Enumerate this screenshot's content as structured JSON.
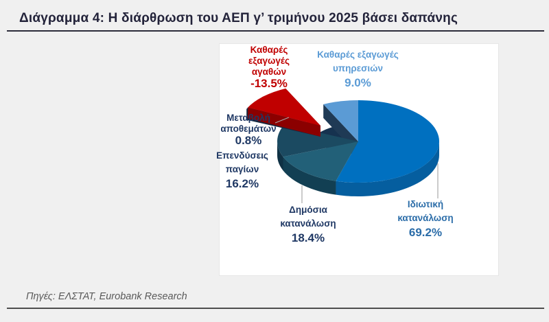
{
  "page": {
    "background_color": "#f0f0f0",
    "panel_color": "#ffffff"
  },
  "header": {
    "title": "Διάγραμμα 4: Η διάρθρωση του ΑΕΠ γ’ τριμήνου 2025 βάσει δαπάνης"
  },
  "footer": {
    "source": "Πηγές: ΕΛΣΤΑΤ, Eurobank Research"
  },
  "chart_data": {
    "type": "pie",
    "style": "3d exploded pie",
    "title": "Η διάρθρωση του ΑΕΠ γ’ τριμήνου 2025 βάσει δαπάνης",
    "unit": "%",
    "legend_position": "callout labels around pie",
    "slices": [
      {
        "id": "private-consumption",
        "label": "Ιδιωτική κατανάλωση",
        "value": 69.2,
        "display": "69.2%",
        "color": "#0070c0",
        "side_color": "#055e9f",
        "label_color": "#2a6ca8"
      },
      {
        "id": "public-consumption",
        "label": "Δημόσια κατανάλωση",
        "value": 18.4,
        "display": "18.4%",
        "color": "#226078",
        "side_color": "#123f53",
        "label_color": "#1f3864"
      },
      {
        "id": "fixed-investment",
        "label": "Επενδύσεις παγίων",
        "value": 16.2,
        "display": "16.2%",
        "color": "#1b4a61",
        "side_color": "#0f3144",
        "label_color": "#1f3864",
        "wall_end": true
      },
      {
        "id": "inventories-change",
        "label": "Μεταβολή αποθεμάτων",
        "value": 0.8,
        "display": "0.8%",
        "color": "#1c3557",
        "side_color": "#14283f",
        "label_color": "#1f3864",
        "exploded": true
      },
      {
        "id": "net-goods-exports",
        "label": "Καθαρές εξαγωγές αγαθών",
        "value": -13.5,
        "display": "-13.5%",
        "color": "#c00000",
        "side_color": "#8b0000",
        "label_color": "#c00000",
        "exploded": true
      },
      {
        "id": "net-services-exports",
        "label": "Καθαρές εξαγωγές υπηρεσιών",
        "value": 9.0,
        "display": "9.0%",
        "color": "#5b9bd5",
        "side_color": "#1f3a55",
        "label_color": "#5b9bd5",
        "wall_start": true
      }
    ]
  }
}
